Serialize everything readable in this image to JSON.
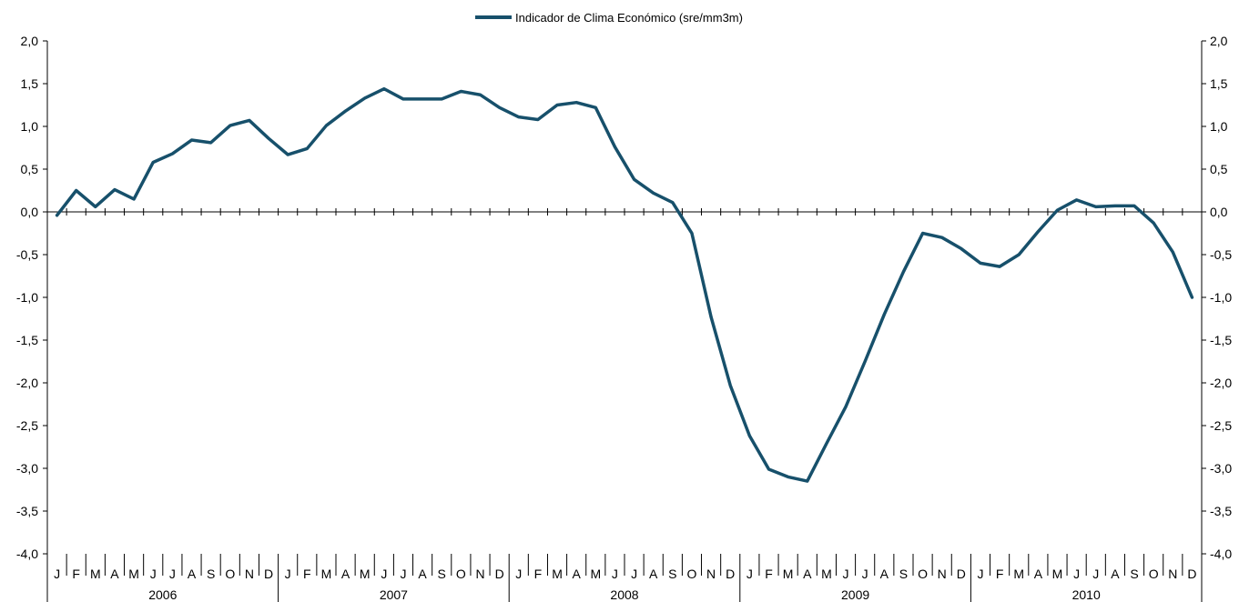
{
  "chart_data": {
    "type": "line",
    "title": "",
    "xlabel": "",
    "ylabel": "",
    "ylim": [
      -4.0,
      2.0
    ],
    "ytick_values": [
      2.0,
      1.5,
      1.0,
      0.5,
      0.0,
      -0.5,
      -1.0,
      -1.5,
      -2.0,
      -2.5,
      -3.0,
      -3.5,
      -4.0
    ],
    "ytick_labels": [
      "2,0",
      "1,5",
      "1,0",
      "0,5",
      "0,0",
      "-0,5",
      "-1,0",
      "-1,5",
      "-2,0",
      "-2,5",
      "-3,0",
      "-3,5",
      "-4,0"
    ],
    "secondary_axis": true,
    "grid": false,
    "legend_position": "top-center",
    "line_color": "#17506B",
    "month_labels": [
      "J",
      "F",
      "M",
      "A",
      "M",
      "J",
      "J",
      "A",
      "S",
      "O",
      "N",
      "D"
    ],
    "years": [
      "2006",
      "2007",
      "2008",
      "2009",
      "2010"
    ],
    "series": [
      {
        "name": "Indicador de Clima Económico (sre/mm3m)",
        "values": [
          -0.04,
          0.25,
          0.06,
          0.26,
          0.15,
          0.58,
          0.68,
          0.84,
          0.81,
          1.01,
          1.07,
          0.86,
          0.67,
          0.74,
          1.01,
          1.18,
          1.33,
          1.44,
          1.32,
          1.32,
          1.32,
          1.41,
          1.37,
          1.22,
          1.11,
          1.08,
          1.25,
          1.28,
          1.22,
          0.76,
          0.38,
          0.22,
          0.11,
          -0.25,
          -1.23,
          -2.03,
          -2.62,
          -3.01,
          -3.1,
          -3.15,
          -2.71,
          -2.28,
          -1.75,
          -1.2,
          -0.7,
          -0.25,
          -0.3,
          -0.43,
          -0.6,
          -0.64,
          -0.5,
          -0.23,
          0.02,
          0.14,
          0.06,
          0.07,
          0.07,
          -0.13,
          -0.47,
          -1.0
        ]
      }
    ]
  }
}
